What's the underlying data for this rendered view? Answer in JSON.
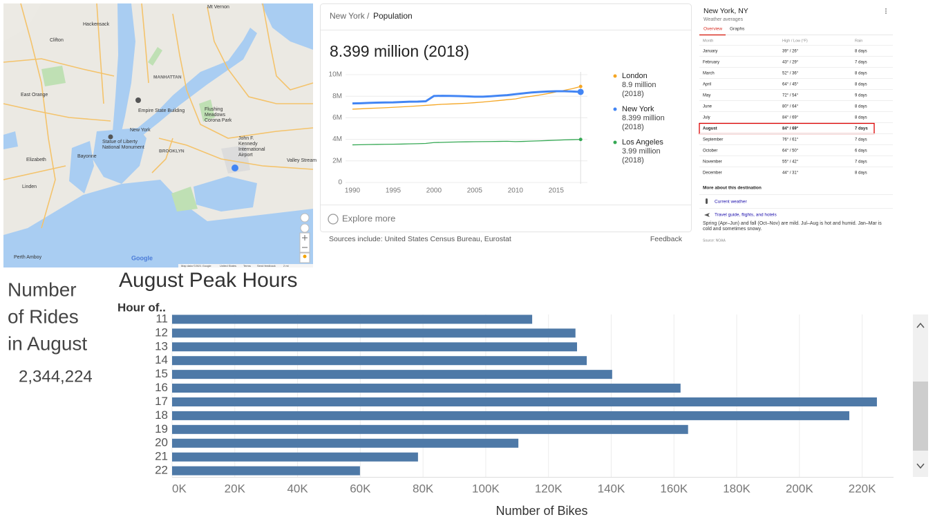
{
  "map": {
    "labels": [
      [
        "Hackensack"
      ],
      [
        "Clifton"
      ],
      [
        "Mt Vernon"
      ],
      [
        "East Orange"
      ],
      [
        "MANHATTAN"
      ],
      [
        "Empire State Building"
      ],
      [
        "New York"
      ],
      [
        "Statue of Liberty",
        "National Monument"
      ],
      [
        "Bayonne"
      ],
      [
        "BROOKLYN"
      ],
      [
        "Flushing",
        "Meadows",
        "Corona Park"
      ],
      [
        "John F.",
        "Kennedy",
        "International",
        "Airport"
      ],
      [
        "Elizabeth"
      ],
      [
        "Linden"
      ],
      [
        "Valley Stream"
      ],
      [
        "Perth Amboy"
      ]
    ],
    "logo": "Google",
    "attribution": [
      "Map data ©2021 Google",
      "United States",
      "Terms",
      "Send feedback",
      "2 mi"
    ]
  },
  "chart_data": [
    {
      "type": "line",
      "breadcrumb": {
        "parent": "New York",
        "separator": "/",
        "current": "Population"
      },
      "title": "8.399 million (2018)",
      "x": [
        1990,
        1991,
        1992,
        1993,
        1994,
        1995,
        1996,
        1997,
        1998,
        1999,
        2000,
        2001,
        2002,
        2003,
        2004,
        2005,
        2006,
        2007,
        2008,
        2009,
        2010,
        2011,
        2012,
        2013,
        2014,
        2015,
        2016,
        2017,
        2018
      ],
      "series": [
        {
          "name": "London",
          "color": "#f5a623",
          "legend_lines": [
            "8.9 million",
            "(2018)"
          ],
          "values": [
            6800000,
            6830000,
            6870000,
            6900000,
            6930000,
            6970000,
            7010000,
            7050000,
            7100000,
            7150000,
            7200000,
            7250000,
            7280000,
            7310000,
            7350000,
            7400000,
            7460000,
            7530000,
            7600000,
            7680000,
            7750000,
            7900000,
            8000000,
            8120000,
            8250000,
            8400000,
            8550000,
            8700000,
            8900000
          ]
        },
        {
          "name": "New York",
          "color": "#4285f4",
          "highlighted": true,
          "legend_lines": [
            "8.399 million",
            "(2018)"
          ],
          "values": [
            7330000,
            7350000,
            7380000,
            7400000,
            7420000,
            7430000,
            7460000,
            7490000,
            7500000,
            7530000,
            8020000,
            8040000,
            8030000,
            8010000,
            7990000,
            7960000,
            7960000,
            8000000,
            8050000,
            8100000,
            8190000,
            8270000,
            8350000,
            8400000,
            8440000,
            8460000,
            8460000,
            8440000,
            8399000
          ]
        },
        {
          "name": "Los Angeles",
          "color": "#34a853",
          "legend_lines": [
            "3.99 million",
            "(2018)"
          ],
          "values": [
            3490000,
            3500000,
            3520000,
            3530000,
            3540000,
            3550000,
            3560000,
            3580000,
            3600000,
            3620000,
            3700000,
            3720000,
            3740000,
            3760000,
            3770000,
            3780000,
            3790000,
            3800000,
            3810000,
            3820000,
            3790000,
            3810000,
            3840000,
            3860000,
            3890000,
            3920000,
            3950000,
            3970000,
            3990000
          ]
        }
      ],
      "xlim": [
        1987.5,
        2019
      ],
      "ylim": [
        0,
        10000000
      ],
      "xticks": [
        1990,
        1995,
        2000,
        2005,
        2010,
        2015
      ],
      "yticks": [
        0,
        {
          "value": 2000000,
          "label": "2M"
        },
        {
          "value": 4000000,
          "label": "4M"
        },
        {
          "value": 6000000,
          "label": "6M"
        },
        {
          "value": 8000000,
          "label": "8M"
        },
        {
          "value": 10000000,
          "label": "10M"
        }
      ],
      "grid": true,
      "footer": {
        "explore": "Explore more",
        "sources": "Sources include: United States Census Bureau, Eurostat",
        "feedback": "Feedback"
      }
    },
    {
      "type": "hbar",
      "title": "August Peak Hours",
      "y_label": "Hour of..",
      "x_label": "Number of Bikes",
      "categories": [
        "11",
        "12",
        "13",
        "14",
        "15",
        "16",
        "17",
        "18",
        "19",
        "20",
        "21",
        "22"
      ],
      "values": [
        114800,
        128600,
        129100,
        132200,
        140300,
        162100,
        224700,
        215900,
        164500,
        110400,
        78400,
        59900
      ],
      "color": "#4e79a7",
      "xlim": [
        0,
        230000
      ],
      "xticks": [
        {
          "value": 0,
          "label": "0K"
        },
        {
          "value": 20000,
          "label": "20K"
        },
        {
          "value": 40000,
          "label": "40K"
        },
        {
          "value": 60000,
          "label": "60K"
        },
        {
          "value": 80000,
          "label": "80K"
        },
        {
          "value": 100000,
          "label": "100K"
        },
        {
          "value": 120000,
          "label": "120K"
        },
        {
          "value": 140000,
          "label": "140K"
        },
        {
          "value": 160000,
          "label": "160K"
        },
        {
          "value": 180000,
          "label": "180K"
        },
        {
          "value": 200000,
          "label": "200K"
        },
        {
          "value": 220000,
          "label": "220K"
        }
      ],
      "grid": true
    }
  ],
  "kpi": {
    "title_lines": [
      "Number",
      "of Rides",
      "in August"
    ],
    "value": "2,344,224"
  },
  "weather": {
    "title": "New York, NY",
    "subtitle": "Weather averages",
    "tabs": [
      "Overview",
      "Graphs"
    ],
    "header": [
      "Month",
      "High / Low (°F)",
      "Rain"
    ],
    "rows": [
      {
        "month": "January",
        "temp": "39° / 26°",
        "rain": "8 days"
      },
      {
        "month": "February",
        "temp": "43° / 29°",
        "rain": "7 days"
      },
      {
        "month": "March",
        "temp": "52° / 36°",
        "rain": "8 days"
      },
      {
        "month": "April",
        "temp": "64° / 45°",
        "rain": "8 days"
      },
      {
        "month": "May",
        "temp": "72° / 54°",
        "rain": "9 days"
      },
      {
        "month": "June",
        "temp": "80° / 64°",
        "rain": "8 days"
      },
      {
        "month": "July",
        "temp": "84° / 69°",
        "rain": "8 days"
      },
      {
        "month": "August",
        "temp": "84° / 69°",
        "rain": "7 days",
        "highlighted": true
      },
      {
        "month": "September",
        "temp": "76° / 61°",
        "rain": "7 days"
      },
      {
        "month": "October",
        "temp": "64° / 50°",
        "rain": "6 days"
      },
      {
        "month": "November",
        "temp": "55° / 42°",
        "rain": "7 days"
      },
      {
        "month": "December",
        "temp": "44° / 31°",
        "rain": "8 days"
      }
    ],
    "more_title": "More about this destination",
    "links": [
      "Current weather",
      "Travel guide, flights, and hotels"
    ],
    "note": "Spring (Apr–Jun) and fall (Oct–Nov) are mild. Jul–Aug is hot and humid. Jan–Mar is cold and sometimes snowy.",
    "source": "Source: NOAA"
  }
}
